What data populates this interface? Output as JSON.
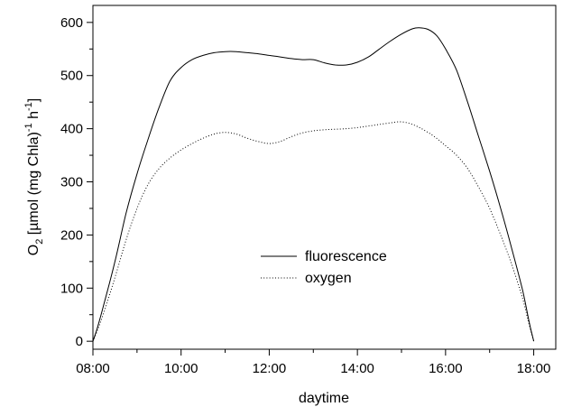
{
  "chart_data": {
    "type": "line",
    "title": "",
    "xlabel": "daytime",
    "ylabel": {
      "prefix": "O",
      "sub": "2",
      "main": " [µmol (mg Chla)",
      "sup1": "-1",
      "mid": " h",
      "sup2": "-1",
      "end": "]"
    },
    "xlim": [
      8,
      18.5
    ],
    "ylim": [
      -15,
      632
    ],
    "x_ticks": [
      {
        "value": 8,
        "label": "08:00"
      },
      {
        "value": 10,
        "label": "10:00"
      },
      {
        "value": 12,
        "label": "12:00"
      },
      {
        "value": 14,
        "label": "14:00"
      },
      {
        "value": 16,
        "label": "16:00"
      },
      {
        "value": 18,
        "label": "18:00"
      }
    ],
    "y_ticks": [
      0,
      100,
      200,
      300,
      400,
      500,
      600
    ],
    "grid": false,
    "legend_position": "center",
    "series": [
      {
        "name": "fluorescence",
        "style": "solid",
        "color": "#000000",
        "points": [
          [
            8.0,
            0
          ],
          [
            8.1,
            25
          ],
          [
            8.25,
            70
          ],
          [
            8.5,
            150
          ],
          [
            8.75,
            240
          ],
          [
            9.0,
            315
          ],
          [
            9.25,
            380
          ],
          [
            9.5,
            440
          ],
          [
            9.75,
            490
          ],
          [
            10.0,
            515
          ],
          [
            10.25,
            530
          ],
          [
            10.5,
            538
          ],
          [
            10.75,
            543
          ],
          [
            11.0,
            545
          ],
          [
            11.25,
            545
          ],
          [
            11.5,
            543
          ],
          [
            11.75,
            541
          ],
          [
            12.0,
            538
          ],
          [
            12.25,
            535
          ],
          [
            12.5,
            532
          ],
          [
            12.75,
            530
          ],
          [
            13.0,
            530
          ],
          [
            13.25,
            524
          ],
          [
            13.5,
            520
          ],
          [
            13.75,
            520
          ],
          [
            14.0,
            525
          ],
          [
            14.25,
            535
          ],
          [
            14.5,
            550
          ],
          [
            14.75,
            565
          ],
          [
            15.0,
            578
          ],
          [
            15.25,
            588
          ],
          [
            15.4,
            590
          ],
          [
            15.6,
            587
          ],
          [
            15.8,
            575
          ],
          [
            16.0,
            550
          ],
          [
            16.25,
            510
          ],
          [
            16.5,
            450
          ],
          [
            16.75,
            385
          ],
          [
            17.0,
            320
          ],
          [
            17.25,
            250
          ],
          [
            17.5,
            175
          ],
          [
            17.75,
            95
          ],
          [
            17.9,
            35
          ],
          [
            18.0,
            0
          ]
        ]
      },
      {
        "name": "oxygen",
        "style": "dotted",
        "color": "#000000",
        "points": [
          [
            8.0,
            0
          ],
          [
            8.1,
            20
          ],
          [
            8.25,
            55
          ],
          [
            8.5,
            120
          ],
          [
            8.75,
            190
          ],
          [
            9.0,
            250
          ],
          [
            9.25,
            295
          ],
          [
            9.5,
            325
          ],
          [
            9.75,
            345
          ],
          [
            10.0,
            360
          ],
          [
            10.25,
            372
          ],
          [
            10.5,
            382
          ],
          [
            10.75,
            390
          ],
          [
            11.0,
            393
          ],
          [
            11.25,
            390
          ],
          [
            11.5,
            382
          ],
          [
            11.75,
            376
          ],
          [
            12.0,
            372
          ],
          [
            12.25,
            376
          ],
          [
            12.5,
            385
          ],
          [
            12.75,
            392
          ],
          [
            13.0,
            396
          ],
          [
            13.25,
            398
          ],
          [
            13.5,
            399
          ],
          [
            13.75,
            400
          ],
          [
            14.0,
            402
          ],
          [
            14.25,
            405
          ],
          [
            14.5,
            408
          ],
          [
            14.75,
            411
          ],
          [
            15.0,
            413
          ],
          [
            15.25,
            408
          ],
          [
            15.5,
            398
          ],
          [
            15.75,
            385
          ],
          [
            16.0,
            368
          ],
          [
            16.25,
            350
          ],
          [
            16.5,
            325
          ],
          [
            16.75,
            290
          ],
          [
            17.0,
            250
          ],
          [
            17.25,
            200
          ],
          [
            17.5,
            145
          ],
          [
            17.75,
            80
          ],
          [
            17.9,
            30
          ],
          [
            18.0,
            0
          ]
        ]
      }
    ]
  }
}
